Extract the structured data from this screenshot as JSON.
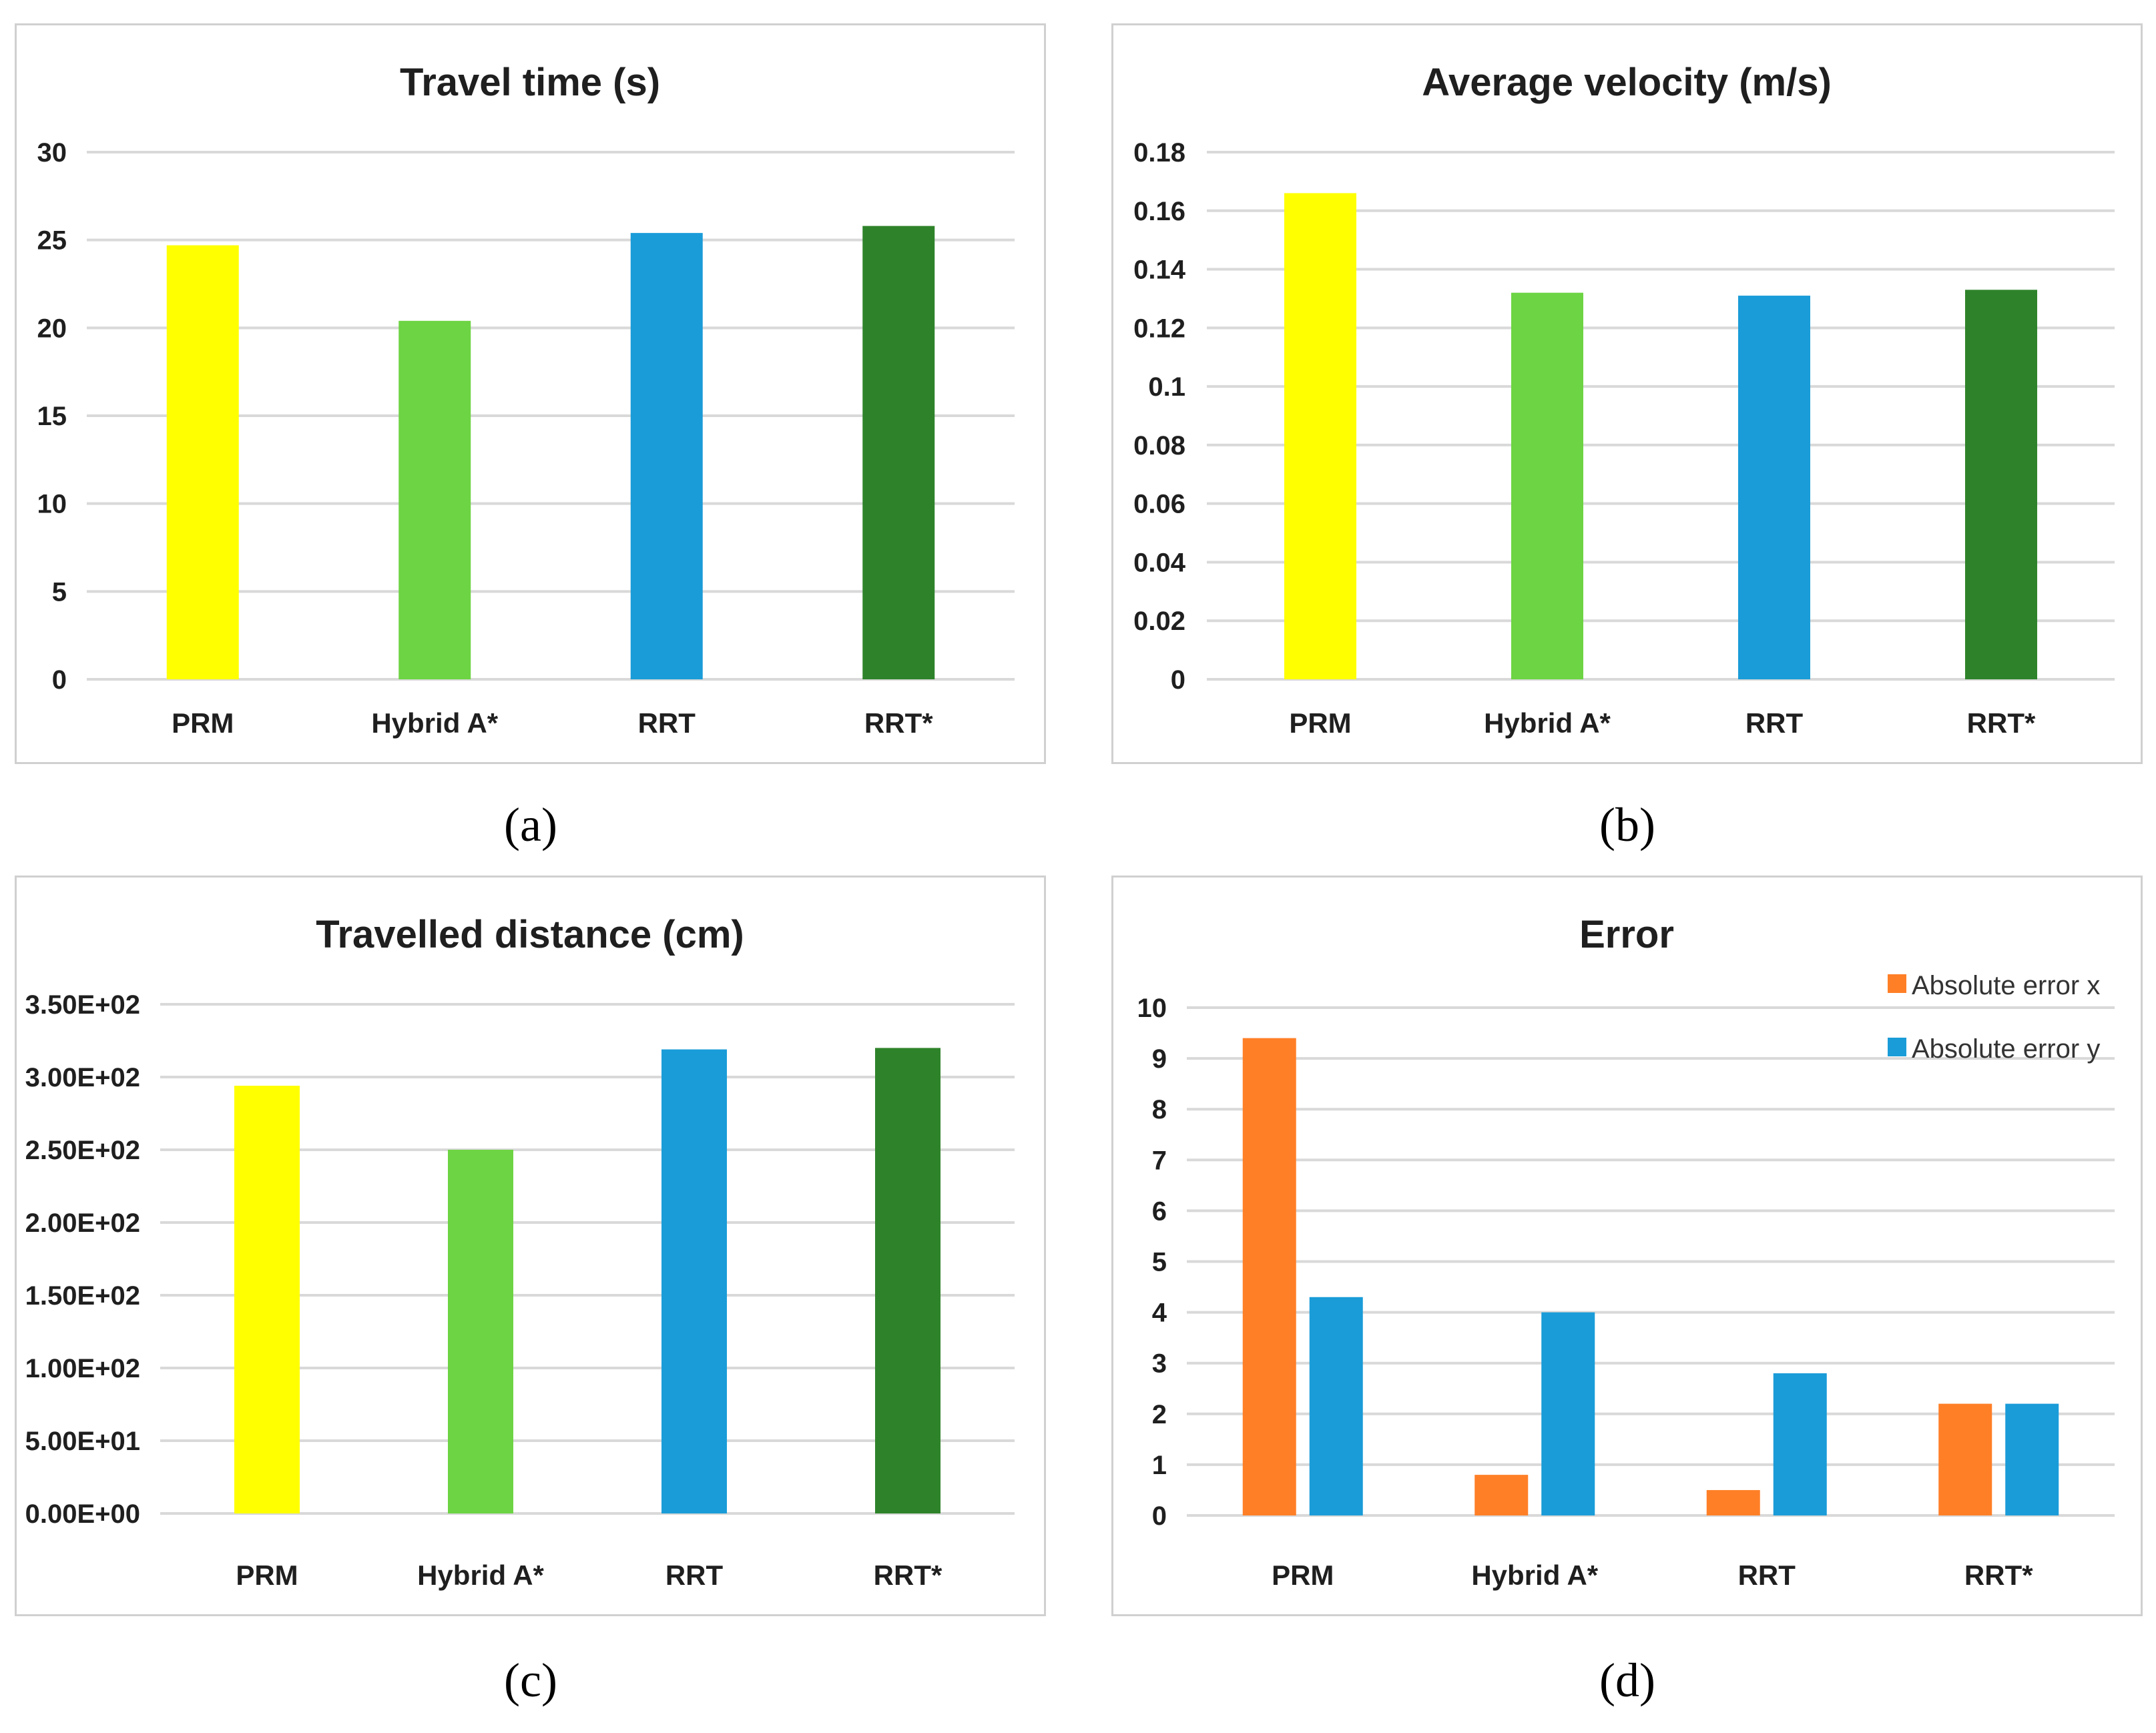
{
  "captions": [
    "(a)",
    "(b)",
    "(c)",
    "(d)"
  ],
  "chart_data": [
    {
      "type": "bar",
      "title": "Travel time (s)",
      "categories": [
        "PRM",
        "Hybrid A*",
        "RRT",
        "RRT*"
      ],
      "values": [
        24.7,
        20.4,
        25.4,
        25.8
      ],
      "colors": [
        "#FFFF00",
        "#6DD443",
        "#1A9CD8",
        "#2E832A"
      ],
      "ylim": [
        0,
        30
      ],
      "yticks": [
        0,
        5,
        10,
        15,
        20,
        25,
        30
      ],
      "ytick_labels": [
        "0",
        "5",
        "10",
        "15",
        "20",
        "25",
        "30"
      ]
    },
    {
      "type": "bar",
      "title": "Average velocity (m/s)",
      "categories": [
        "PRM",
        "Hybrid A*",
        "RRT",
        "RRT*"
      ],
      "values": [
        0.166,
        0.132,
        0.131,
        0.133
      ],
      "colors": [
        "#FFFF00",
        "#6DD443",
        "#1A9CD8",
        "#2E832A"
      ],
      "ylim": [
        0,
        0.18
      ],
      "yticks": [
        0,
        0.02,
        0.04,
        0.06,
        0.08,
        0.1,
        0.12,
        0.14,
        0.16,
        0.18
      ],
      "ytick_labels": [
        "0",
        "0.02",
        "0.04",
        "0.06",
        "0.08",
        "0.1",
        "0.12",
        "0.14",
        "0.16",
        "0.18"
      ]
    },
    {
      "type": "bar",
      "title": "Travelled distance (cm)",
      "categories": [
        "PRM",
        "Hybrid A*",
        "RRT",
        "RRT*"
      ],
      "values": [
        294,
        250,
        319,
        320
      ],
      "colors": [
        "#FFFF00",
        "#6DD443",
        "#1A9CD8",
        "#2E832A"
      ],
      "ylim": [
        0,
        350
      ],
      "yticks": [
        0,
        50,
        100,
        150,
        200,
        250,
        300,
        350
      ],
      "ytick_labels": [
        "0.00E+00",
        "5.00E+01",
        "1.00E+02",
        "1.50E+02",
        "2.00E+02",
        "2.50E+02",
        "3.00E+02",
        "3.50E+02"
      ]
    },
    {
      "type": "bar",
      "title": "Error",
      "categories": [
        "PRM",
        "Hybrid A*",
        "RRT",
        "RRT*"
      ],
      "series": [
        {
          "name": "Absolute error x",
          "color": "#FF7F27",
          "values": [
            9.4,
            0.8,
            0.5,
            2.2
          ]
        },
        {
          "name": "Absolute error y",
          "color": "#1A9CD8",
          "values": [
            4.3,
            4.0,
            2.8,
            2.2
          ]
        }
      ],
      "ylim": [
        0,
        10
      ],
      "yticks": [
        0,
        1,
        2,
        3,
        4,
        5,
        6,
        7,
        8,
        9,
        10
      ],
      "ytick_labels": [
        "0",
        "1",
        "2",
        "3",
        "4",
        "5",
        "6",
        "7",
        "8",
        "9",
        "10"
      ],
      "legend_position": "top-right"
    }
  ]
}
